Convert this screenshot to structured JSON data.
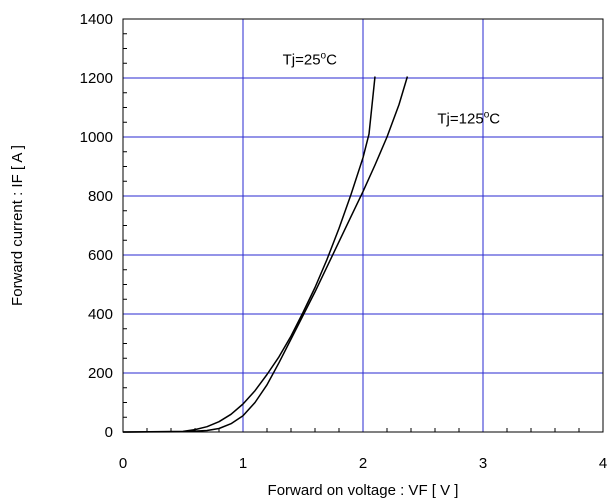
{
  "chart_data": {
    "type": "line",
    "title": "",
    "xlabel": "Forward on voltage : VF [ V ]",
    "ylabel": "Forward current : IF [ A ]",
    "xlim": [
      0,
      4
    ],
    "ylim": [
      0,
      1400
    ],
    "x_ticks": [
      "0",
      "1",
      "2",
      "3",
      "4"
    ],
    "y_ticks": [
      "0",
      "200",
      "400",
      "600",
      "800",
      "1000",
      "1200",
      "1400"
    ],
    "x_minor_step": 0.2,
    "y_minor_step": 50,
    "grid": true,
    "colors": {
      "grid": "#2a2ad0",
      "series": "#000000",
      "frame": "#000000"
    },
    "series": [
      {
        "label": {
          "base": "Tj=25",
          "sup": "o",
          "unit": "C"
        },
        "x": [
          0.0,
          0.5,
          0.6,
          0.7,
          0.8,
          0.9,
          1.0,
          1.1,
          1.2,
          1.3,
          1.4,
          1.5,
          1.6,
          1.7,
          1.8,
          1.9,
          2.0,
          2.05,
          2.1
        ],
        "y": [
          0,
          2,
          8,
          18,
          35,
          60,
          95,
          140,
          195,
          255,
          325,
          405,
          490,
          585,
          690,
          805,
          930,
          1010,
          1205
        ]
      },
      {
        "label": {
          "base": "Tj=125",
          "sup": "o",
          "unit": "C"
        },
        "x": [
          0.0,
          0.5,
          0.7,
          0.8,
          0.9,
          1.0,
          1.1,
          1.2,
          1.3,
          1.4,
          1.5,
          1.6,
          1.7,
          1.8,
          1.9,
          2.0,
          2.1,
          2.2,
          2.3,
          2.37
        ],
        "y": [
          0,
          1,
          5,
          12,
          28,
          55,
          100,
          160,
          235,
          315,
          395,
          475,
          560,
          645,
          730,
          815,
          905,
          1000,
          1110,
          1205
        ]
      }
    ],
    "annotations": [
      {
        "series": 0,
        "x": 1.33,
        "y": 1245
      },
      {
        "series": 1,
        "x": 2.62,
        "y": 1045
      }
    ]
  }
}
